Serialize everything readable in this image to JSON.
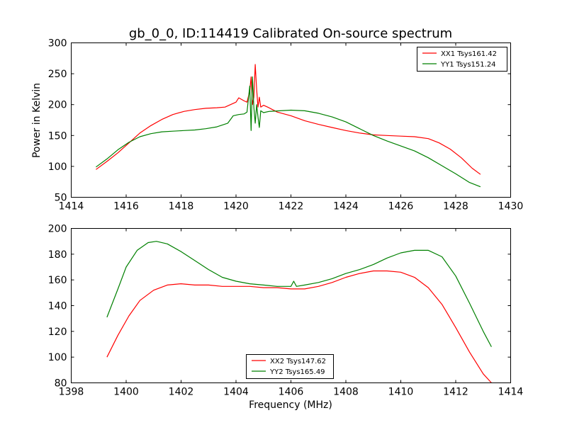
{
  "figure_title": "gb_0_0, ID:114419 Calibrated On-source spectrum",
  "chart_data": [
    {
      "type": "line",
      "title": "",
      "xlabel": "",
      "ylabel": "Power in Kelvin",
      "xlim": [
        1414,
        1430
      ],
      "ylim": [
        50,
        300
      ],
      "xticks": [
        1414,
        1416,
        1418,
        1420,
        1422,
        1424,
        1426,
        1428,
        1430
      ],
      "yticks": [
        50,
        100,
        150,
        200,
        250,
        300
      ],
      "legend_position": "top-right",
      "series": [
        {
          "name": "XX1 Tsys161.42",
          "color": "#ff0000",
          "x": [
            1414.9,
            1415.3,
            1415.7,
            1416.1,
            1416.5,
            1416.9,
            1417.3,
            1417.7,
            1418.1,
            1418.5,
            1418.9,
            1419.3,
            1419.6,
            1419.8,
            1420.0,
            1420.1,
            1420.3,
            1420.4,
            1420.5,
            1420.55,
            1420.6,
            1420.65,
            1420.7,
            1420.75,
            1420.8,
            1420.85,
            1420.9,
            1421.0,
            1421.2,
            1421.5,
            1422.0,
            1422.5,
            1423.0,
            1423.5,
            1424.0,
            1424.5,
            1425.0,
            1425.5,
            1426.0,
            1426.5,
            1427.0,
            1427.4,
            1427.8,
            1428.2,
            1428.6,
            1428.9
          ],
          "y": [
            95,
            108,
            122,
            138,
            154,
            166,
            176,
            184,
            189,
            192,
            194,
            195,
            196,
            200,
            204,
            211,
            206,
            204,
            222,
            245,
            200,
            212,
            265,
            225,
            196,
            212,
            196,
            199,
            195,
            188,
            182,
            174,
            168,
            163,
            158,
            154,
            151,
            150,
            149,
            148,
            145,
            138,
            128,
            114,
            97,
            87
          ]
        },
        {
          "name": "YY1 Tsys151.24",
          "color": "#008000",
          "x": [
            1414.9,
            1415.3,
            1415.7,
            1416.1,
            1416.5,
            1416.9,
            1417.3,
            1417.7,
            1418.1,
            1418.5,
            1418.9,
            1419.3,
            1419.7,
            1419.9,
            1420.1,
            1420.3,
            1420.4,
            1420.5,
            1420.55,
            1420.6,
            1420.65,
            1420.7,
            1420.75,
            1420.8,
            1420.85,
            1420.9,
            1421.0,
            1421.2,
            1421.6,
            1422.0,
            1422.5,
            1423.0,
            1423.5,
            1424.0,
            1424.5,
            1425.0,
            1425.5,
            1426.0,
            1426.5,
            1427.0,
            1427.5,
            1428.0,
            1428.5,
            1428.9
          ],
          "y": [
            99,
            112,
            127,
            139,
            148,
            153,
            156,
            157,
            158,
            159,
            161,
            164,
            170,
            182,
            184,
            185,
            188,
            230,
            158,
            245,
            195,
            170,
            200,
            180,
            163,
            190,
            187,
            189,
            190,
            191,
            190,
            186,
            180,
            172,
            161,
            150,
            141,
            133,
            125,
            114,
            101,
            88,
            74,
            67
          ]
        }
      ]
    },
    {
      "type": "line",
      "title": "",
      "xlabel": "Frequency (MHz)",
      "ylabel": "",
      "xlim": [
        1398,
        1414
      ],
      "ylim": [
        80,
        200
      ],
      "xticks": [
        1398,
        1400,
        1402,
        1404,
        1406,
        1408,
        1410,
        1412,
        1414
      ],
      "yticks": [
        80,
        100,
        120,
        140,
        160,
        180,
        200
      ],
      "legend_position": "bottom-center",
      "series": [
        {
          "name": "XX2 Tsys147.62",
          "color": "#ff0000",
          "x": [
            1399.3,
            1399.7,
            1400.1,
            1400.5,
            1401.0,
            1401.5,
            1402.0,
            1402.5,
            1403.0,
            1403.5,
            1404.0,
            1404.5,
            1405.0,
            1405.5,
            1406.0,
            1406.5,
            1407.0,
            1407.5,
            1408.0,
            1408.5,
            1409.0,
            1409.5,
            1410.0,
            1410.5,
            1411.0,
            1411.5,
            1412.0,
            1412.5,
            1413.0,
            1413.3
          ],
          "y": [
            100,
            117,
            132,
            144,
            152,
            156,
            157,
            156,
            156,
            155,
            155,
            155,
            154,
            154,
            153,
            153,
            155,
            158,
            162,
            165,
            167,
            167,
            166,
            162,
            154,
            141,
            123,
            104,
            87,
            80
          ]
        },
        {
          "name": "YY2 Tsys165.49",
          "color": "#008000",
          "x": [
            1399.3,
            1399.7,
            1400.0,
            1400.4,
            1400.8,
            1401.1,
            1401.5,
            1402.0,
            1402.5,
            1403.0,
            1403.5,
            1404.0,
            1404.5,
            1405.0,
            1405.5,
            1406.0,
            1406.1,
            1406.2,
            1406.5,
            1407.0,
            1407.5,
            1408.0,
            1408.5,
            1409.0,
            1409.5,
            1410.0,
            1410.5,
            1411.0,
            1411.5,
            1412.0,
            1412.5,
            1413.0,
            1413.3
          ],
          "y": [
            131,
            153,
            170,
            183,
            189,
            190,
            188,
            182,
            175,
            168,
            162,
            159,
            157,
            156,
            155,
            155,
            159,
            155,
            156,
            158,
            161,
            165,
            168,
            172,
            177,
            181,
            183,
            183,
            178,
            163,
            142,
            120,
            108
          ]
        }
      ]
    }
  ]
}
